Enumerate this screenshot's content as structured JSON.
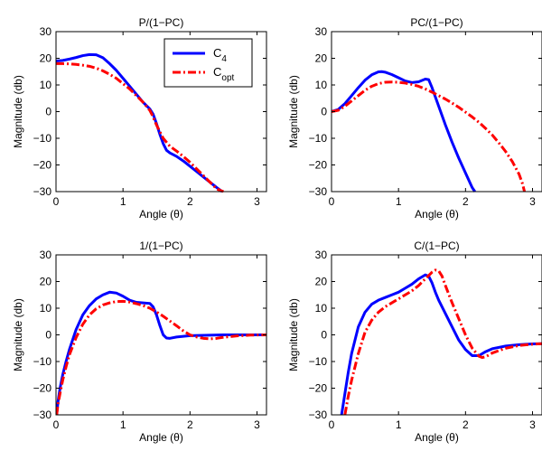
{
  "colors": {
    "c4": "#0000ff",
    "copt": "#ff0000"
  },
  "legend": {
    "entries": [
      {
        "base": "C",
        "sub": "4",
        "series": "c4"
      },
      {
        "base": "C",
        "sub": "opt",
        "series": "copt"
      }
    ]
  },
  "chart_data": [
    {
      "type": "line",
      "title": "P/(1−PC)",
      "xlabel": "Angle (θ)",
      "ylabel": "Magnitude (db)",
      "xlim": [
        0,
        3.1416
      ],
      "ylim": [
        -30,
        30
      ],
      "xticks": [
        0,
        1,
        2,
        3
      ],
      "yticks": [
        -30,
        -20,
        -10,
        0,
        10,
        20,
        30
      ],
      "series": [
        {
          "name": "C4",
          "x": [
            0,
            0.1,
            0.2,
            0.3,
            0.4,
            0.5,
            0.6,
            0.7,
            0.8,
            0.9,
            1.0,
            1.1,
            1.2,
            1.3,
            1.4,
            1.45,
            1.5,
            1.55,
            1.6,
            1.65,
            1.7,
            1.8,
            1.9,
            2.0,
            2.1,
            2.2,
            2.3,
            2.4,
            2.48
          ],
          "y": [
            19,
            19.2,
            19.7,
            20.3,
            21,
            21.4,
            21.3,
            20.2,
            18,
            15.5,
            12.5,
            9.5,
            6.5,
            3.5,
            1,
            -1,
            -4.5,
            -8.5,
            -12,
            -14.5,
            -15.5,
            -16.8,
            -18.5,
            -20.5,
            -22.5,
            -24.5,
            -26.5,
            -28.5,
            -30
          ]
        },
        {
          "name": "Copt",
          "x": [
            0,
            0.1,
            0.2,
            0.3,
            0.4,
            0.5,
            0.6,
            0.7,
            0.8,
            0.9,
            1.0,
            1.1,
            1.2,
            1.3,
            1.4,
            1.45,
            1.5,
            1.55,
            1.6,
            1.65,
            1.7,
            1.8,
            1.9,
            2.0,
            2.1,
            2.2,
            2.3,
            2.4,
            2.5
          ],
          "y": [
            18,
            18,
            17.9,
            17.7,
            17.4,
            17,
            16.3,
            15.3,
            14,
            12.5,
            10.5,
            8.5,
            6,
            3.5,
            0.5,
            -2,
            -5,
            -7.5,
            -10,
            -11.5,
            -13,
            -14.8,
            -16.8,
            -19,
            -21.5,
            -24,
            -26.5,
            -29,
            -30
          ]
        }
      ]
    },
    {
      "type": "line",
      "title": "PC/(1−PC)",
      "xlabel": "Angle (θ)",
      "ylabel": "Magnitude (db)",
      "xlim": [
        0,
        3.1416
      ],
      "ylim": [
        -30,
        30
      ],
      "xticks": [
        0,
        1,
        2,
        3
      ],
      "yticks": [
        -30,
        -20,
        -10,
        0,
        10,
        20,
        30
      ],
      "series": [
        {
          "name": "C4",
          "x": [
            0,
            0.1,
            0.2,
            0.3,
            0.4,
            0.5,
            0.6,
            0.7,
            0.75,
            0.8,
            0.9,
            1.0,
            1.1,
            1.2,
            1.3,
            1.4,
            1.45,
            1.5,
            1.6,
            1.7,
            1.8,
            1.9,
            2.0,
            2.1,
            2.14
          ],
          "y": [
            0,
            0.8,
            3,
            6,
            9,
            11.8,
            13.8,
            14.9,
            15,
            14.8,
            13.9,
            12.7,
            11.5,
            10.9,
            11.2,
            12.2,
            12,
            9,
            2,
            -5,
            -11.5,
            -17.5,
            -23,
            -28.5,
            -30
          ]
        },
        {
          "name": "Copt",
          "x": [
            0,
            0.1,
            0.2,
            0.3,
            0.4,
            0.5,
            0.6,
            0.7,
            0.8,
            0.9,
            1.0,
            1.1,
            1.2,
            1.3,
            1.4,
            1.5,
            1.6,
            1.7,
            1.8,
            1.9,
            2.0,
            2.1,
            2.2,
            2.3,
            2.4,
            2.5,
            2.6,
            2.7,
            2.8,
            2.85,
            2.88
          ],
          "y": [
            0,
            0.5,
            2,
            4,
            6,
            8,
            9.5,
            10.5,
            11,
            11.1,
            11,
            10.7,
            10.2,
            9.5,
            8.5,
            7.3,
            6,
            4.7,
            3.2,
            1.6,
            -0.2,
            -2,
            -4,
            -6.3,
            -8.8,
            -11.8,
            -15,
            -18.8,
            -23.5,
            -27,
            -30
          ]
        }
      ]
    },
    {
      "type": "line",
      "title": "1/(1−PC)",
      "xlabel": "Angle (θ)",
      "ylabel": "Magnitude (db)",
      "xlim": [
        0,
        3.1416
      ],
      "ylim": [
        -30,
        30
      ],
      "xticks": [
        0,
        1,
        2,
        3
      ],
      "yticks": [
        -30,
        -20,
        -10,
        0,
        10,
        20,
        30
      ],
      "series": [
        {
          "name": "C4",
          "x": [
            0.01,
            0.03,
            0.06,
            0.1,
            0.15,
            0.2,
            0.3,
            0.4,
            0.5,
            0.6,
            0.7,
            0.8,
            0.9,
            1.0,
            1.1,
            1.2,
            1.3,
            1.4,
            1.45,
            1.5,
            1.55,
            1.6,
            1.65,
            1.7,
            1.8,
            2.0,
            2.5,
            3.1416
          ],
          "y": [
            -30,
            -25,
            -20,
            -15,
            -10,
            -5.5,
            2,
            7.5,
            11,
            13.5,
            15,
            16,
            15.7,
            14.5,
            13,
            12.2,
            12,
            11.8,
            10.5,
            7.5,
            3.5,
            0,
            -1.2,
            -1.3,
            -0.8,
            -0.3,
            0,
            0
          ]
        },
        {
          "name": "Copt",
          "x": [
            0.01,
            0.03,
            0.06,
            0.1,
            0.15,
            0.2,
            0.3,
            0.4,
            0.5,
            0.6,
            0.7,
            0.8,
            0.9,
            1.0,
            1.1,
            1.2,
            1.3,
            1.4,
            1.5,
            1.6,
            1.7,
            1.8,
            1.9,
            2.0,
            2.1,
            2.2,
            2.3,
            2.4,
            2.5,
            2.7,
            2.9,
            3.1416
          ],
          "y": [
            -30,
            -26,
            -22,
            -17,
            -12,
            -7.5,
            -1,
            4,
            7.5,
            9.8,
            11.2,
            12,
            12.5,
            12.6,
            12.3,
            11.7,
            11,
            10,
            8.6,
            7,
            5.2,
            3.4,
            1.5,
            0,
            -0.8,
            -1.3,
            -1.5,
            -1.3,
            -0.9,
            -0.4,
            -0.1,
            0
          ]
        }
      ]
    },
    {
      "type": "line",
      "title": "C/(1−PC)",
      "xlabel": "Angle (θ)",
      "ylabel": "Magnitude (db)",
      "xlim": [
        0,
        3.1416
      ],
      "ylim": [
        -30,
        30
      ],
      "xticks": [
        0,
        1,
        2,
        3
      ],
      "yticks": [
        -30,
        -20,
        -10,
        0,
        10,
        20,
        30
      ],
      "series": [
        {
          "name": "C4",
          "x": [
            0.15,
            0.2,
            0.25,
            0.3,
            0.4,
            0.5,
            0.6,
            0.7,
            0.8,
            0.9,
            1.0,
            1.1,
            1.2,
            1.3,
            1.4,
            1.45,
            1.5,
            1.55,
            1.6,
            1.7,
            1.8,
            1.9,
            2.0,
            2.1,
            2.2,
            2.3,
            2.4,
            2.6,
            2.8,
            3.0,
            3.1416
          ],
          "y": [
            -30,
            -22,
            -14,
            -7,
            3,
            8.5,
            11.5,
            13,
            14,
            15,
            16,
            17.5,
            19,
            21,
            22.5,
            22,
            19.5,
            16,
            13,
            8,
            3,
            -2,
            -5.5,
            -7.8,
            -7.8,
            -6.3,
            -5.2,
            -4.2,
            -3.7,
            -3.4,
            -3.3
          ]
        },
        {
          "name": "Copt",
          "x": [
            0.2,
            0.25,
            0.3,
            0.4,
            0.5,
            0.6,
            0.7,
            0.8,
            0.9,
            1.0,
            1.1,
            1.2,
            1.3,
            1.4,
            1.5,
            1.55,
            1.6,
            1.65,
            1.7,
            1.8,
            1.9,
            2.0,
            2.1,
            2.2,
            2.25,
            2.3,
            2.4,
            2.6,
            2.8,
            3.0,
            3.1416
          ],
          "y": [
            -30,
            -23,
            -17,
            -7,
            1,
            5.5,
            8.5,
            10.5,
            12,
            13.5,
            15,
            16.5,
            18.5,
            21,
            23.5,
            24.3,
            24,
            22,
            18.5,
            12,
            6,
            0,
            -5,
            -8,
            -8.5,
            -8.2,
            -6.8,
            -5,
            -4,
            -3.5,
            -3.3
          ]
        }
      ]
    }
  ]
}
